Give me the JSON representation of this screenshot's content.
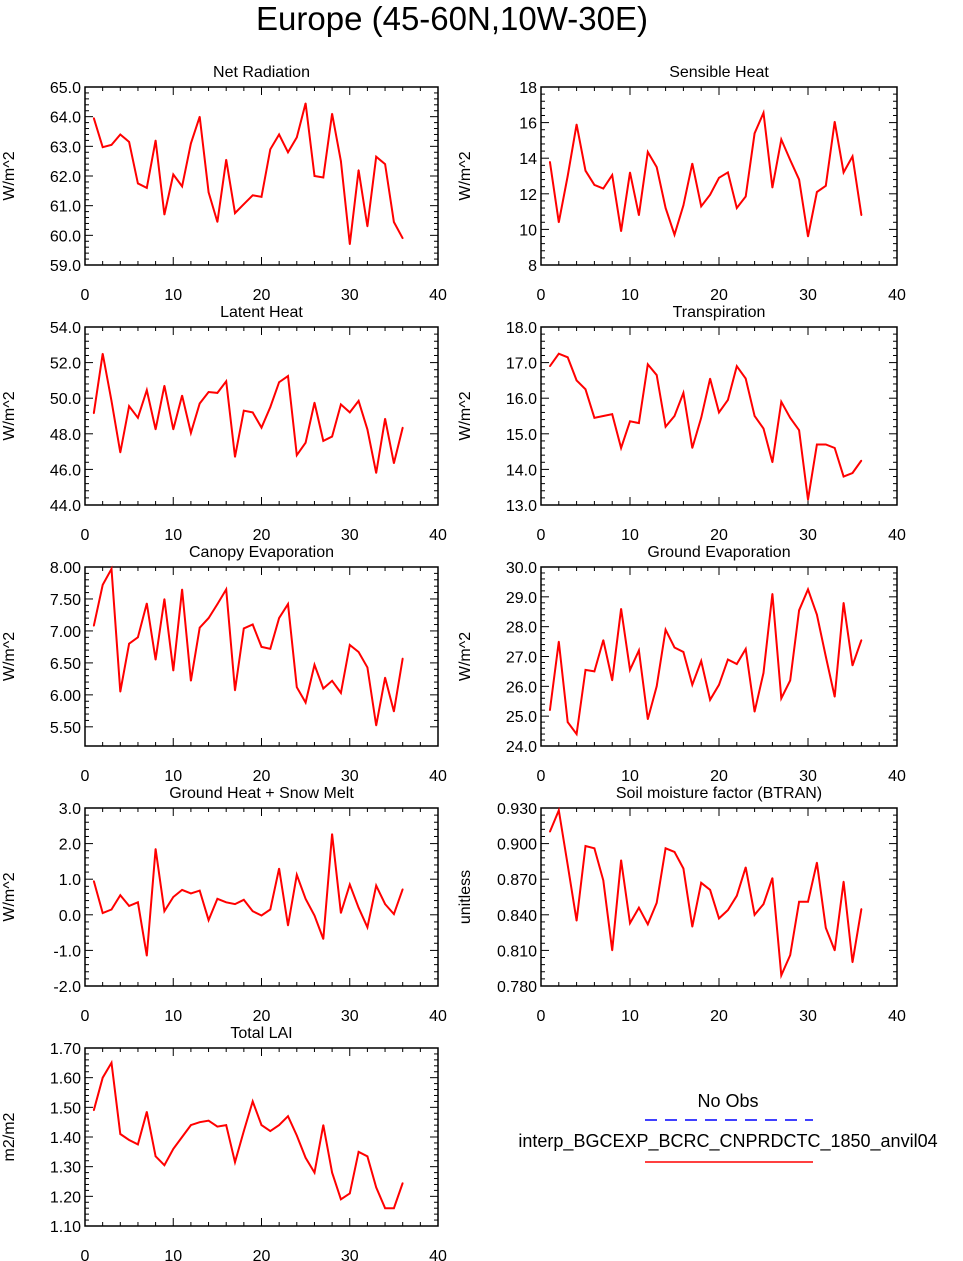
{
  "title": "Europe (45-60N,10W-30E)",
  "colors": {
    "series": "#ff0000",
    "obs": "#0000ff",
    "axis": "#000000"
  },
  "chart_data": [
    {
      "type": "line",
      "title": "Net Radiation",
      "ylabel": "W/m^2",
      "xlim": [
        0,
        40
      ],
      "ylim": [
        59,
        65
      ],
      "xticks": [
        0,
        10,
        20,
        30,
        40
      ],
      "xtick_labels": [
        "0",
        "10",
        "20",
        "30",
        "40"
      ],
      "yticks": [
        59,
        60,
        61,
        62,
        63,
        64,
        65
      ],
      "ytick_labels": [
        "59.0",
        "60.0",
        "61.0",
        "62.0",
        "63.0",
        "64.0",
        "65.0"
      ],
      "x": [
        1,
        2,
        3,
        4,
        5,
        6,
        7,
        8,
        9,
        10,
        11,
        12,
        13,
        14,
        15,
        16,
        17,
        18,
        19,
        20,
        21,
        22,
        23,
        24,
        25,
        26,
        27,
        28,
        29,
        30,
        31,
        32,
        33,
        34,
        35,
        36
      ],
      "series": [
        {
          "name": "interp_BGCEXP_BCRC_CNPRDCTC_1850_anvil04",
          "values": [
            63.95,
            62.97,
            63.05,
            63.4,
            63.15,
            61.75,
            61.6,
            63.2,
            60.7,
            62.05,
            61.65,
            63.1,
            64.0,
            61.45,
            60.45,
            62.55,
            60.75,
            61.05,
            61.35,
            61.3,
            62.9,
            63.4,
            62.8,
            63.3,
            64.45,
            62.0,
            61.95,
            64.1,
            62.5,
            59.7,
            62.2,
            60.3,
            62.65,
            62.4,
            60.45,
            59.9
          ]
        }
      ]
    },
    {
      "type": "line",
      "title": "Sensible Heat",
      "ylabel": "W/m^2",
      "xlim": [
        0,
        40
      ],
      "ylim": [
        8,
        18
      ],
      "xticks": [
        0,
        10,
        20,
        30,
        40
      ],
      "xtick_labels": [
        "0",
        "10",
        "20",
        "30",
        "40"
      ],
      "yticks": [
        8,
        10,
        12,
        14,
        16,
        18
      ],
      "ytick_labels": [
        "8",
        "10",
        "12",
        "14",
        "16",
        "18"
      ],
      "x": [
        1,
        2,
        3,
        4,
        5,
        6,
        7,
        8,
        9,
        10,
        11,
        12,
        13,
        14,
        15,
        16,
        17,
        18,
        19,
        20,
        21,
        22,
        23,
        24,
        25,
        26,
        27,
        28,
        29,
        30,
        31,
        32,
        33,
        34,
        35,
        36
      ],
      "series": [
        {
          "name": "interp_BGCEXP_BCRC_CNPRDCTC_1850_anvil04",
          "values": [
            13.8,
            10.4,
            13.0,
            15.9,
            13.3,
            12.5,
            12.3,
            13.05,
            9.9,
            13.2,
            10.8,
            14.35,
            13.5,
            11.2,
            9.7,
            11.35,
            13.7,
            11.3,
            11.95,
            12.9,
            13.2,
            11.2,
            11.85,
            15.4,
            16.55,
            12.35,
            15.05,
            13.9,
            12.8,
            9.6,
            12.1,
            12.45,
            16.05,
            13.2,
            14.1,
            10.8
          ]
        }
      ]
    },
    {
      "type": "line",
      "title": "Latent Heat",
      "ylabel": "W/m^2",
      "xlim": [
        0,
        40
      ],
      "ylim": [
        44,
        54
      ],
      "xticks": [
        0,
        10,
        20,
        30,
        40
      ],
      "xtick_labels": [
        "0",
        "10",
        "20",
        "30",
        "40"
      ],
      "yticks": [
        44,
        46,
        48,
        50,
        52,
        54
      ],
      "ytick_labels": [
        "44.0",
        "46.0",
        "48.0",
        "50.0",
        "52.0",
        "54.0"
      ],
      "x": [
        1,
        2,
        3,
        4,
        5,
        6,
        7,
        8,
        9,
        10,
        11,
        12,
        13,
        14,
        15,
        16,
        17,
        18,
        19,
        20,
        21,
        22,
        23,
        24,
        25,
        26,
        27,
        28,
        29,
        30,
        31,
        32,
        33,
        34,
        35,
        36
      ],
      "series": [
        {
          "name": "interp_BGCEXP_BCRC_CNPRDCTC_1850_anvil04",
          "values": [
            49.15,
            52.5,
            49.85,
            46.95,
            49.55,
            48.9,
            50.45,
            48.25,
            50.7,
            48.25,
            50.15,
            48.05,
            49.7,
            50.35,
            50.3,
            50.95,
            46.7,
            49.3,
            49.2,
            48.35,
            49.5,
            50.9,
            51.25,
            46.8,
            47.5,
            49.75,
            47.6,
            47.85,
            49.65,
            49.2,
            49.85,
            48.25,
            45.8,
            48.85,
            46.35,
            48.35
          ]
        }
      ]
    },
    {
      "type": "line",
      "title": "Transpiration",
      "ylabel": "W/m^2",
      "xlim": [
        0,
        40
      ],
      "ylim": [
        13,
        18
      ],
      "xticks": [
        0,
        10,
        20,
        30,
        40
      ],
      "xtick_labels": [
        "0",
        "10",
        "20",
        "30",
        "40"
      ],
      "yticks": [
        13,
        14,
        15,
        16,
        17,
        18
      ],
      "ytick_labels": [
        "13.0",
        "14.0",
        "15.0",
        "16.0",
        "17.0",
        "18.0"
      ],
      "x": [
        1,
        2,
        3,
        4,
        5,
        6,
        7,
        8,
        9,
        10,
        11,
        12,
        13,
        14,
        15,
        16,
        17,
        18,
        19,
        20,
        21,
        22,
        23,
        24,
        25,
        26,
        27,
        28,
        29,
        30,
        31,
        32,
        33,
        34,
        35,
        36
      ],
      "series": [
        {
          "name": "interp_BGCEXP_BCRC_CNPRDCTC_1850_anvil04",
          "values": [
            16.9,
            17.25,
            17.15,
            16.5,
            16.25,
            15.45,
            15.5,
            15.55,
            14.6,
            15.35,
            15.3,
            16.95,
            16.65,
            15.2,
            15.5,
            16.15,
            14.6,
            15.45,
            16.55,
            15.6,
            15.95,
            16.9,
            16.55,
            15.5,
            15.15,
            14.2,
            15.9,
            15.45,
            15.1,
            13.15,
            14.7,
            14.7,
            14.6,
            13.8,
            13.9,
            14.25
          ]
        }
      ]
    },
    {
      "type": "line",
      "title": "Canopy Evaporation",
      "ylabel": "W/m^2",
      "xlim": [
        0,
        40
      ],
      "ylim": [
        5.2,
        8.0
      ],
      "xticks": [
        0,
        10,
        20,
        30,
        40
      ],
      "xtick_labels": [
        "0",
        "10",
        "20",
        "30",
        "40"
      ],
      "yticks": [
        5.5,
        6.0,
        6.5,
        7.0,
        7.5,
        8.0
      ],
      "ytick_labels": [
        "5.50",
        "6.00",
        "6.50",
        "7.00",
        "7.50",
        "8.00"
      ],
      "x": [
        1,
        2,
        3,
        4,
        5,
        6,
        7,
        8,
        9,
        10,
        11,
        12,
        13,
        14,
        15,
        16,
        17,
        18,
        19,
        20,
        21,
        22,
        23,
        24,
        25,
        26,
        27,
        28,
        29,
        30,
        31,
        32,
        33,
        34,
        35,
        36
      ],
      "series": [
        {
          "name": "interp_BGCEXP_BCRC_CNPRDCTC_1850_anvil04",
          "values": [
            7.08,
            7.72,
            7.97,
            6.05,
            6.8,
            6.9,
            7.43,
            6.55,
            7.5,
            6.38,
            7.65,
            6.22,
            7.05,
            7.2,
            7.42,
            7.65,
            6.07,
            7.04,
            7.1,
            6.75,
            6.72,
            7.2,
            7.42,
            6.12,
            5.88,
            6.47,
            6.1,
            6.22,
            6.03,
            6.78,
            6.67,
            6.43,
            5.52,
            6.27,
            5.74,
            6.57
          ]
        }
      ]
    },
    {
      "type": "line",
      "title": "Ground Evaporation",
      "ylabel": "W/m^2",
      "xlim": [
        0,
        40
      ],
      "ylim": [
        24,
        30
      ],
      "xticks": [
        0,
        10,
        20,
        30,
        40
      ],
      "xtick_labels": [
        "0",
        "10",
        "20",
        "30",
        "40"
      ],
      "yticks": [
        24,
        25,
        26,
        27,
        28,
        29,
        30
      ],
      "ytick_labels": [
        "24.0",
        "25.0",
        "26.0",
        "27.0",
        "28.0",
        "29.0",
        "30.0"
      ],
      "x": [
        1,
        2,
        3,
        4,
        5,
        6,
        7,
        8,
        9,
        10,
        11,
        12,
        13,
        14,
        15,
        16,
        17,
        18,
        19,
        20,
        21,
        22,
        23,
        24,
        25,
        26,
        27,
        28,
        29,
        30,
        31,
        32,
        33,
        34,
        35,
        36
      ],
      "series": [
        {
          "name": "interp_BGCEXP_BCRC_CNPRDCTC_1850_anvil04",
          "values": [
            25.2,
            27.5,
            24.8,
            24.4,
            26.55,
            26.5,
            27.55,
            26.2,
            28.6,
            26.55,
            27.2,
            24.9,
            26.0,
            27.9,
            27.3,
            27.15,
            26.05,
            26.85,
            25.55,
            26.05,
            26.9,
            26.75,
            27.25,
            25.15,
            26.45,
            29.1,
            25.6,
            26.2,
            28.55,
            29.25,
            28.4,
            27.0,
            25.65,
            28.8,
            26.7,
            27.55
          ]
        }
      ]
    },
    {
      "type": "line",
      "title": "Ground Heat + Snow Melt",
      "ylabel": "W/m^2",
      "xlim": [
        0,
        40
      ],
      "ylim": [
        -2,
        3
      ],
      "xticks": [
        0,
        10,
        20,
        30,
        40
      ],
      "xtick_labels": [
        "0",
        "10",
        "20",
        "30",
        "40"
      ],
      "yticks": [
        -2,
        -1,
        0,
        1,
        2,
        3
      ],
      "ytick_labels": [
        "-2.0",
        "-1.0",
        "0.0",
        "1.0",
        "2.0",
        "3.0"
      ],
      "x": [
        1,
        2,
        3,
        4,
        5,
        6,
        7,
        8,
        9,
        10,
        11,
        12,
        13,
        14,
        15,
        16,
        17,
        18,
        19,
        20,
        21,
        22,
        23,
        24,
        25,
        26,
        27,
        28,
        29,
        30,
        31,
        32,
        33,
        34,
        35,
        36
      ],
      "series": [
        {
          "name": "interp_BGCEXP_BCRC_CNPRDCTC_1850_anvil04",
          "values": [
            0.95,
            0.05,
            0.15,
            0.55,
            0.25,
            0.35,
            -1.15,
            1.85,
            0.1,
            0.5,
            0.7,
            0.6,
            0.68,
            -0.15,
            0.45,
            0.35,
            0.3,
            0.42,
            0.1,
            -0.02,
            0.15,
            1.3,
            -0.3,
            1.12,
            0.45,
            -0.02,
            -0.68,
            2.27,
            0.05,
            0.85,
            0.2,
            -0.35,
            0.82,
            0.3,
            0.02,
            0.72
          ]
        }
      ]
    },
    {
      "type": "line",
      "title": "Soil moisture factor (BTRAN)",
      "ylabel": "unitless",
      "xlim": [
        0,
        40
      ],
      "ylim": [
        0.78,
        0.93
      ],
      "xticks": [
        0,
        10,
        20,
        30,
        40
      ],
      "xtick_labels": [
        "0",
        "10",
        "20",
        "30",
        "40"
      ],
      "yticks": [
        0.78,
        0.81,
        0.84,
        0.87,
        0.9,
        0.93
      ],
      "ytick_labels": [
        "0.780",
        "0.810",
        "0.840",
        "0.870",
        "0.900",
        "0.930"
      ],
      "x": [
        1,
        2,
        3,
        4,
        5,
        6,
        7,
        8,
        9,
        10,
        11,
        12,
        13,
        14,
        15,
        16,
        17,
        18,
        19,
        20,
        21,
        22,
        23,
        24,
        25,
        26,
        27,
        28,
        29,
        30,
        31,
        32,
        33,
        34,
        35,
        36
      ],
      "series": [
        {
          "name": "interp_BGCEXP_BCRC_CNPRDCTC_1850_anvil04",
          "values": [
            0.91,
            0.928,
            0.882,
            0.835,
            0.898,
            0.896,
            0.869,
            0.81,
            0.886,
            0.833,
            0.846,
            0.832,
            0.85,
            0.896,
            0.893,
            0.879,
            0.83,
            0.867,
            0.861,
            0.837,
            0.844,
            0.856,
            0.88,
            0.84,
            0.849,
            0.871,
            0.789,
            0.806,
            0.851,
            0.851,
            0.884,
            0.829,
            0.81,
            0.868,
            0.8,
            0.845
          ]
        }
      ]
    },
    {
      "type": "line",
      "title": "Total LAI",
      "ylabel": "m2/m2",
      "xlim": [
        0,
        40
      ],
      "ylim": [
        1.1,
        1.7
      ],
      "xticks": [
        0,
        10,
        20,
        30,
        40
      ],
      "xtick_labels": [
        "0",
        "10",
        "20",
        "30",
        "40"
      ],
      "yticks": [
        1.1,
        1.2,
        1.3,
        1.4,
        1.5,
        1.6,
        1.7
      ],
      "ytick_labels": [
        "1.10",
        "1.20",
        "1.30",
        "1.40",
        "1.50",
        "1.60",
        "1.70"
      ],
      "x": [
        1,
        2,
        3,
        4,
        5,
        6,
        7,
        8,
        9,
        10,
        11,
        12,
        13,
        14,
        15,
        16,
        17,
        18,
        19,
        20,
        21,
        22,
        23,
        24,
        25,
        26,
        27,
        28,
        29,
        30,
        31,
        32,
        33,
        34,
        35,
        36
      ],
      "series": [
        {
          "name": "interp_BGCEXP_BCRC_CNPRDCTC_1850_anvil04",
          "values": [
            1.49,
            1.6,
            1.65,
            1.41,
            1.39,
            1.375,
            1.485,
            1.335,
            1.305,
            1.36,
            1.4,
            1.44,
            1.45,
            1.455,
            1.435,
            1.44,
            1.315,
            1.42,
            1.52,
            1.44,
            1.42,
            1.44,
            1.47,
            1.405,
            1.33,
            1.28,
            1.44,
            1.28,
            1.19,
            1.21,
            1.35,
            1.335,
            1.23,
            1.16,
            1.16,
            1.245
          ]
        }
      ]
    }
  ],
  "legend": {
    "obs_label": "No Obs",
    "model_label": "interp_BGCEXP_BCRC_CNPRDCTC_1850_anvil04"
  }
}
